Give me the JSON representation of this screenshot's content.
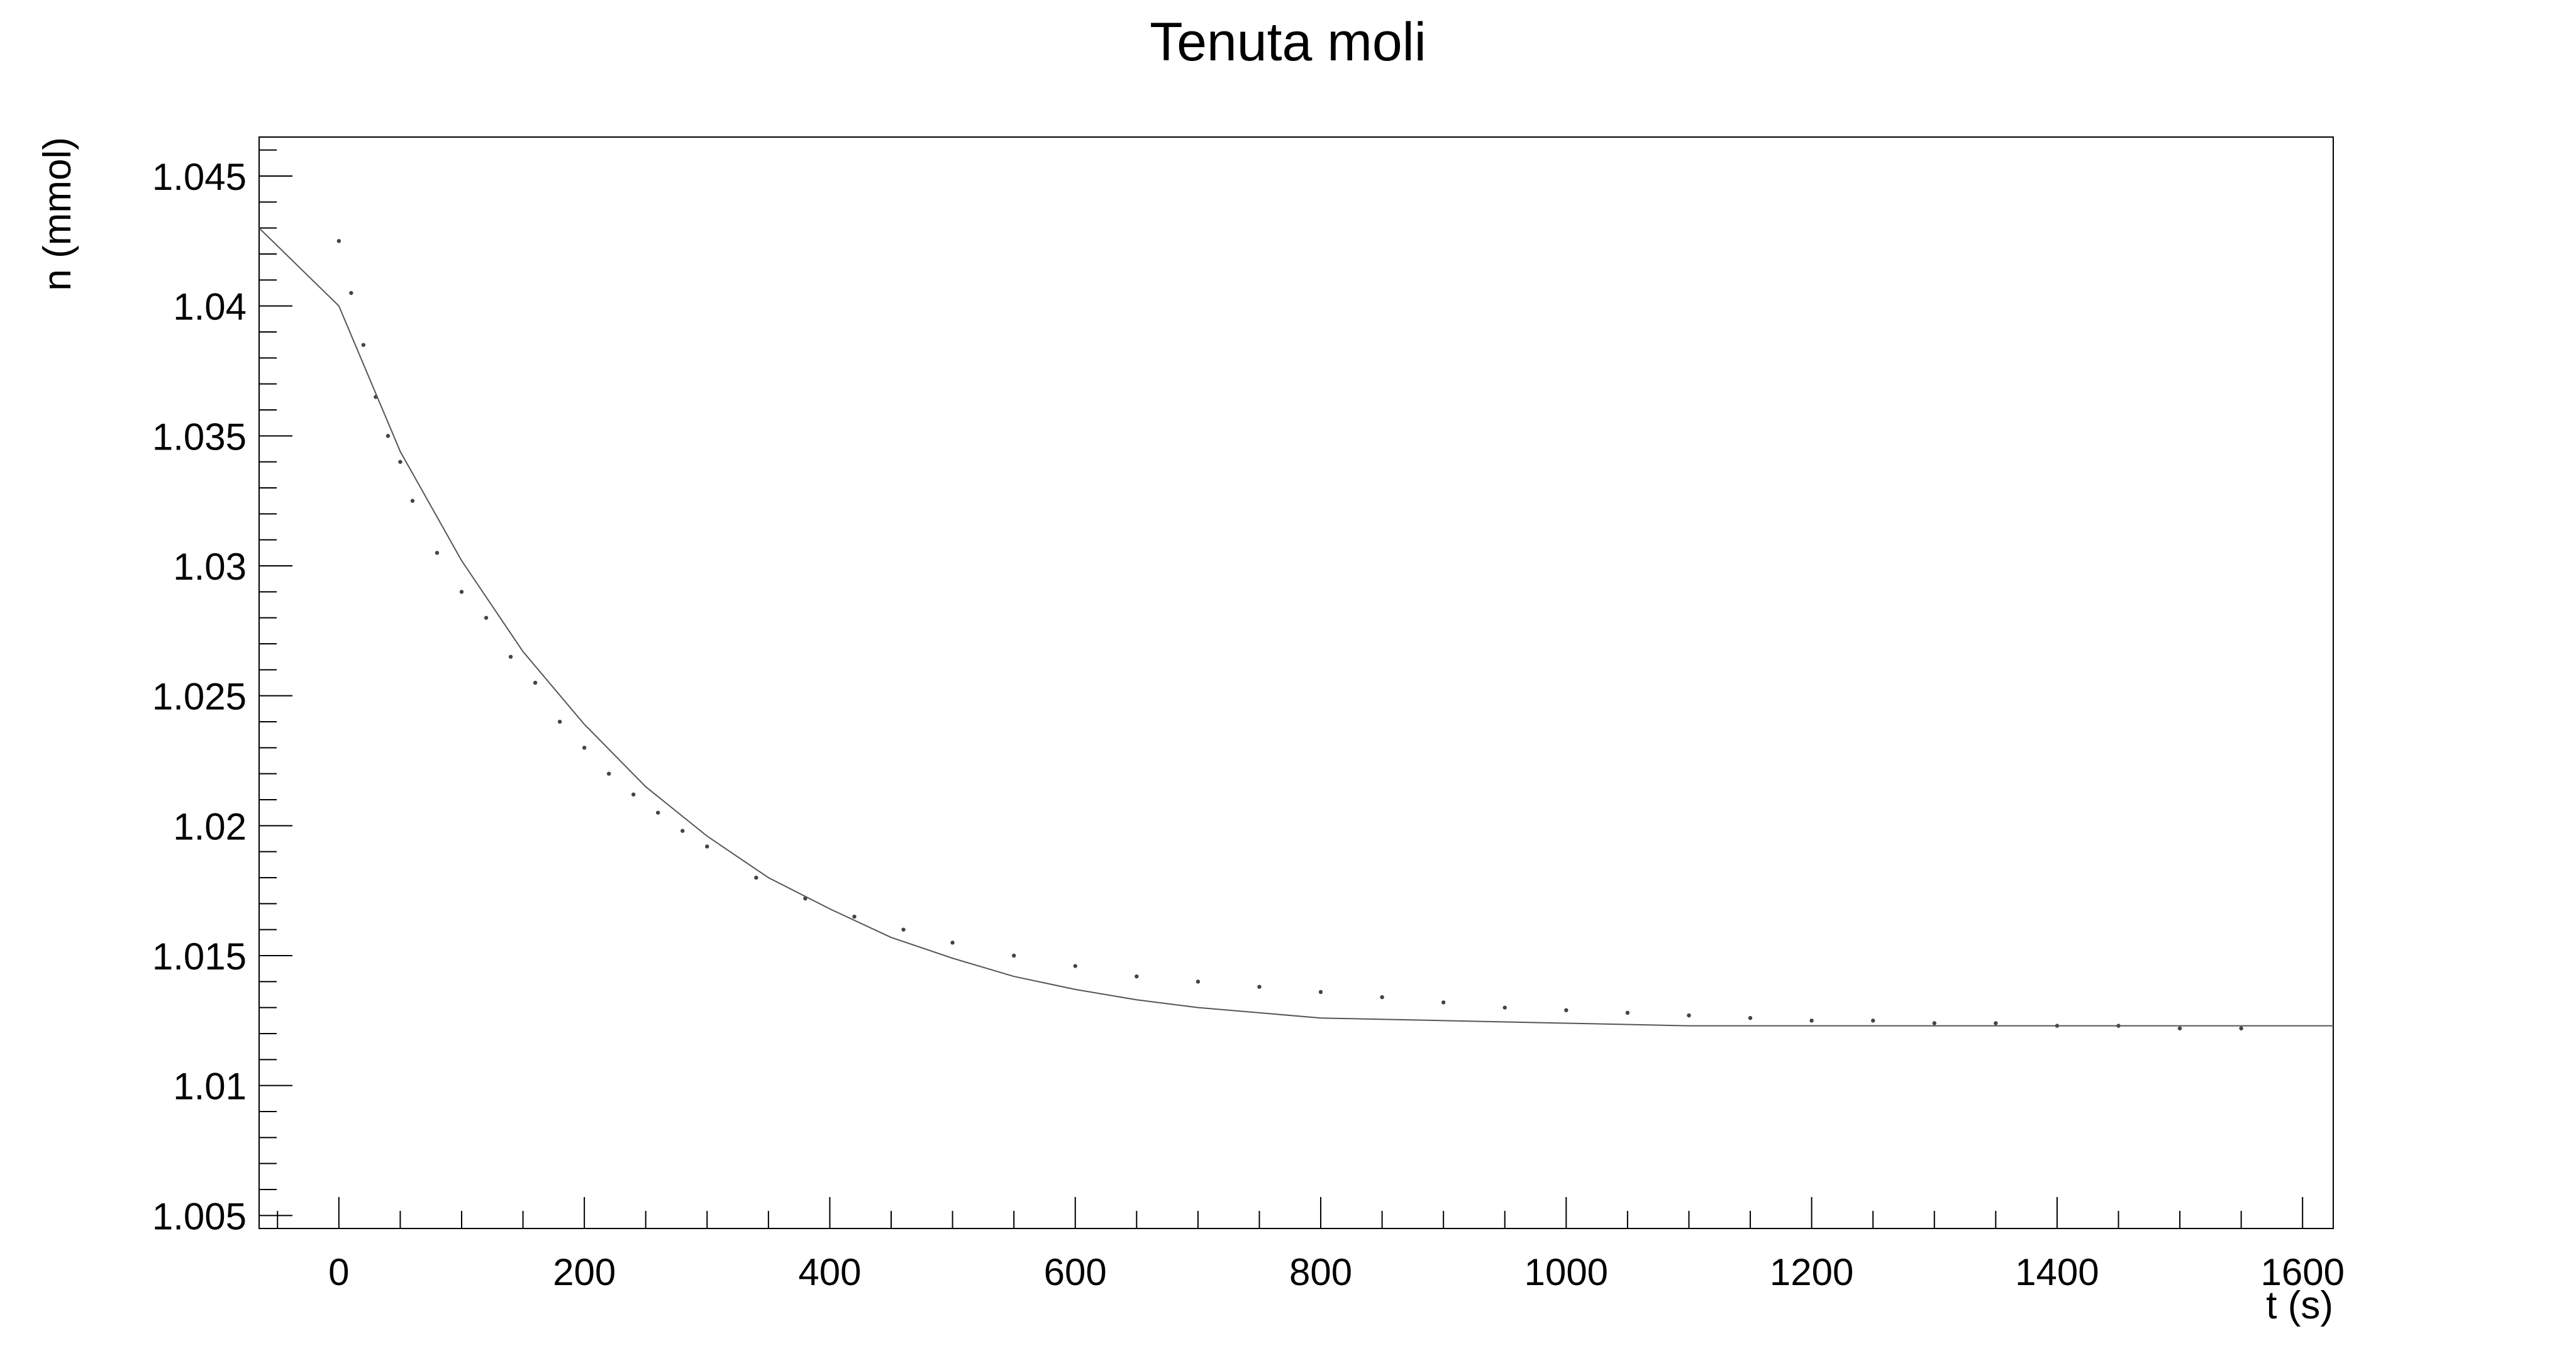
{
  "chart_data": {
    "type": "scatter",
    "title": "Tenuta moli",
    "xlabel": "t (s)",
    "ylabel": "n (mmol)",
    "xlim": [
      -65,
      1625
    ],
    "ylim": [
      1.0045,
      1.0465
    ],
    "x_ticks": [
      0,
      200,
      400,
      600,
      800,
      1000,
      1200,
      1400,
      1600
    ],
    "x_tick_labels": [
      "0",
      "200",
      "400",
      "600",
      "800",
      "1000",
      "1200",
      "1400",
      "1600"
    ],
    "y_ticks": [
      1.005,
      1.01,
      1.015,
      1.02,
      1.025,
      1.03,
      1.035,
      1.04,
      1.045
    ],
    "y_tick_labels": [
      "1.005",
      "1.01",
      "1.015",
      "1.02",
      "1.025",
      "1.03",
      "1.035",
      "1.04",
      "1.045"
    ],
    "legend": "none",
    "grid": false,
    "colors": {
      "axis": "#000000",
      "points": "#444444",
      "fit": "#555555"
    },
    "series": [
      {
        "type": "scatter",
        "x": [
          0,
          10,
          20,
          30,
          40,
          50,
          60,
          80,
          100,
          120,
          140,
          160,
          180,
          200,
          220,
          240,
          260,
          280,
          300,
          340,
          380,
          420,
          460,
          500,
          550,
          600,
          650,
          700,
          750,
          800,
          850,
          900,
          950,
          1000,
          1050,
          1100,
          1150,
          1200,
          1250,
          1300,
          1350,
          1400,
          1450,
          1500,
          1550
        ],
        "y": [
          1.0425,
          1.0405,
          1.0385,
          1.0365,
          1.035,
          1.034,
          1.0325,
          1.0305,
          1.029,
          1.028,
          1.0265,
          1.0255,
          1.024,
          1.023,
          1.022,
          1.0212,
          1.0205,
          1.0198,
          1.0192,
          1.018,
          1.0172,
          1.0165,
          1.016,
          1.0155,
          1.015,
          1.0146,
          1.0142,
          1.014,
          1.0138,
          1.0136,
          1.0134,
          1.0132,
          1.013,
          1.0129,
          1.0128,
          1.0127,
          1.0126,
          1.0125,
          1.0125,
          1.0124,
          1.0124,
          1.0123,
          1.0123,
          1.0122,
          1.0122
        ]
      },
      {
        "type": "line",
        "x": [
          -65,
          0,
          50,
          100,
          150,
          200,
          250,
          300,
          350,
          400,
          450,
          500,
          550,
          600,
          650,
          700,
          800,
          900,
          1000,
          1100,
          1200,
          1300,
          1400,
          1500,
          1600,
          1625
        ],
        "y": [
          1.043,
          1.04,
          1.0344,
          1.0302,
          1.0267,
          1.0239,
          1.0215,
          1.0196,
          1.018,
          1.0168,
          1.0157,
          1.0149,
          1.0142,
          1.0137,
          1.0133,
          1.013,
          1.0126,
          1.0125,
          1.0124,
          1.0123,
          1.0123,
          1.0123,
          1.0123,
          1.0123,
          1.0123,
          1.0123
        ]
      }
    ]
  }
}
